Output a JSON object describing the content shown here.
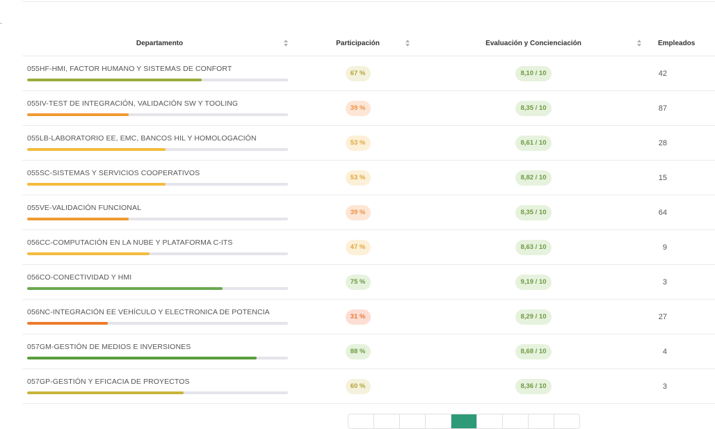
{
  "table": {
    "headers": {
      "dept": "Departamento",
      "part": "Participación",
      "eval": "Evaluación y Concienciación",
      "emp": "Empleados"
    },
    "rows": [
      {
        "name": "055HF-HMI, FACTOR HUMANO Y SISTEMAS DE CONFORT",
        "pct": "67 %",
        "participation": 67,
        "score": "8,10 / 10",
        "employees": "42",
        "color": "#9aaa3a"
      },
      {
        "name": "055IV-TEST DE INTEGRACIÓN, VALIDACIÓN SW Y TOOLING",
        "pct": "39 %",
        "participation": 39,
        "score": "8,35 / 10",
        "employees": "87",
        "color": "#ef9a34"
      },
      {
        "name": "055LB-LABORATORIO EE, EMC, BANCOS HIL Y HOMOLOGACIÓN",
        "pct": "53 %",
        "participation": 53,
        "score": "8,61 / 10",
        "employees": "28",
        "color": "#f4bc3c"
      },
      {
        "name": "055SC-SISTEMAS Y SERVICIOS COOPERATIVOS",
        "pct": "53 %",
        "participation": 53,
        "score": "8,82 / 10",
        "employees": "15",
        "color": "#f4bc3c"
      },
      {
        "name": "055VE-VALIDACIÓN FUNCIONAL",
        "pct": "39 %",
        "participation": 39,
        "score": "8,35 / 10",
        "employees": "64",
        "color": "#ef9a34"
      },
      {
        "name": "056CC-COMPUTACIÓN EN LA NUBE Y PLATAFORMA C-ITS",
        "pct": "47 %",
        "participation": 47,
        "score": "8,63 / 10",
        "employees": "9",
        "color": "#f4bc3c"
      },
      {
        "name": "056CO-CONECTIVIDAD Y HMI",
        "pct": "75 %",
        "participation": 75,
        "score": "9,19 / 10",
        "employees": "3",
        "color": "#6aa84f"
      },
      {
        "name": "056NC-INTEGRACIÓN EE VEHÍCULO Y ELECTRONICA DE POTENCIA",
        "pct": "31 %",
        "participation": 31,
        "score": "8,29 / 10",
        "employees": "27",
        "color": "#ec7b2c"
      },
      {
        "name": "057GM-GESTIÓN DE MEDIOS E INVERSIONES",
        "pct": "88 %",
        "participation": 88,
        "score": "8,68 / 10",
        "employees": "4",
        "color": "#5a9e3e"
      },
      {
        "name": "057GP-GESTIÓN Y EFICACIA DE PROYECTOS",
        "pct": "60 %",
        "participation": 60,
        "score": "8,36 / 10",
        "employees": "3",
        "color": "#c8b43a"
      }
    ]
  },
  "pagination": {
    "active_index": 4,
    "count": 9
  }
}
